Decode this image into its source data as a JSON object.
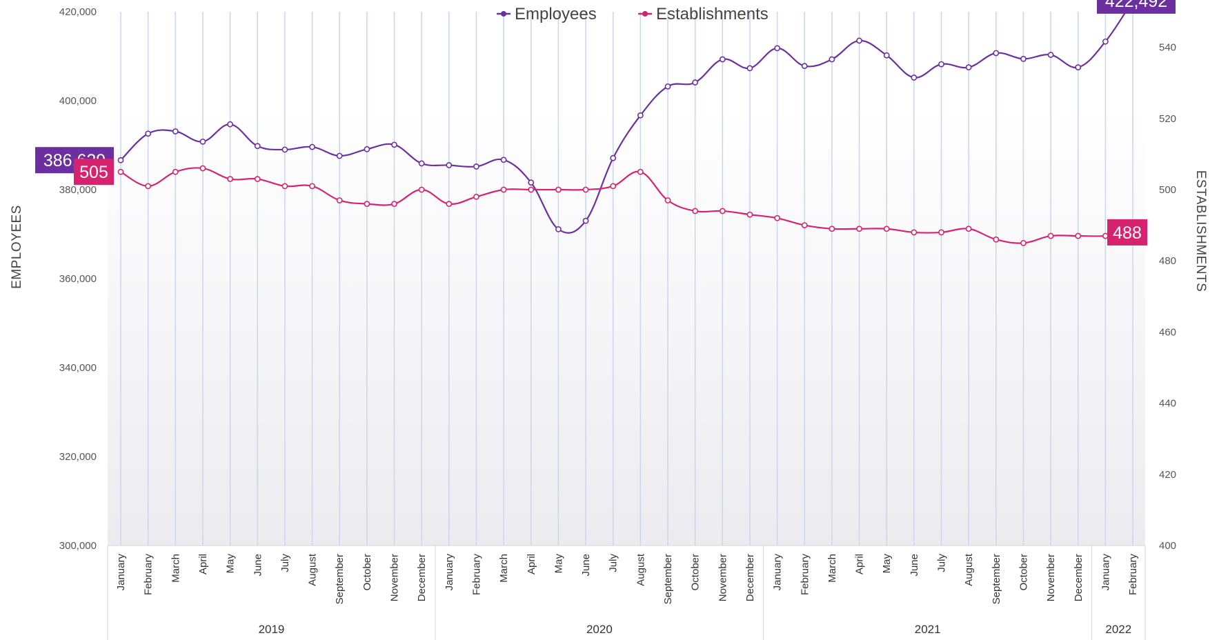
{
  "chart_data": {
    "type": "line",
    "legend": [
      "Employees",
      "Establishments"
    ],
    "legend_position": "top-center",
    "ylabel_left": "EMPLOYEES",
    "ylabel_right": "ESTABLISHMENTS",
    "ylim_left": [
      300000,
      420000
    ],
    "ylim_right": [
      400,
      550
    ],
    "yticks_left": [
      300000,
      320000,
      340000,
      360000,
      380000,
      400000,
      420000
    ],
    "yticks_left_labels": [
      "300,000",
      "320,000",
      "340,000",
      "360,000",
      "380,000",
      "400,000",
      "420,000"
    ],
    "yticks_right": [
      400,
      420,
      440,
      460,
      480,
      500,
      520,
      540
    ],
    "yticks_right_labels": [
      "400",
      "420",
      "440",
      "460",
      "480",
      "500",
      "520",
      "540"
    ],
    "grid": "vertical",
    "months": [
      "January",
      "February",
      "March",
      "April",
      "May",
      "June",
      "July",
      "August",
      "September",
      "October",
      "November",
      "December",
      "January",
      "February",
      "March",
      "April",
      "May",
      "June",
      "July",
      "August",
      "September",
      "October",
      "November",
      "December",
      "January",
      "February",
      "March",
      "April",
      "May",
      "June",
      "July",
      "August",
      "September",
      "October",
      "November",
      "December",
      "January",
      "February"
    ],
    "years": [
      {
        "label": "2019",
        "count": 12
      },
      {
        "label": "2020",
        "count": 12
      },
      {
        "label": "2021",
        "count": 12
      },
      {
        "label": "2022",
        "count": 2
      }
    ],
    "series": [
      {
        "name": "Employees",
        "axis": "left",
        "color": "#6b2fa0",
        "values": [
          386629,
          392600,
          393100,
          390800,
          394700,
          389800,
          389000,
          389600,
          387600,
          389100,
          390100,
          385900,
          385500,
          385200,
          386700,
          381600,
          371100,
          373000,
          387100,
          396700,
          403200,
          404100,
          409300,
          407300,
          411800,
          407800,
          409300,
          413500,
          410200,
          405200,
          408200,
          407500,
          410700,
          409400,
          410300,
          407500,
          413300,
          422492
        ]
      },
      {
        "name": "Establishments",
        "axis": "right",
        "color": "#d6236e",
        "values": [
          505,
          501,
          505,
          506,
          503,
          503,
          501,
          501,
          497,
          496,
          496,
          500,
          496,
          498,
          500,
          500,
          500,
          500,
          501,
          505,
          497,
          494,
          494,
          493,
          492,
          490,
          489,
          489,
          489,
          488,
          488,
          489,
          486,
          485,
          487,
          487,
          487,
          488
        ]
      }
    ],
    "callouts": [
      {
        "series": "Employees",
        "index": 0,
        "text": "386,629",
        "side": "left"
      },
      {
        "series": "Establishments",
        "index": 0,
        "text": "505",
        "side": "left"
      },
      {
        "series": "Employees",
        "index": 37,
        "text": "422,492",
        "side": "right"
      },
      {
        "series": "Establishments",
        "index": 37,
        "text": "488",
        "side": "right"
      }
    ]
  }
}
